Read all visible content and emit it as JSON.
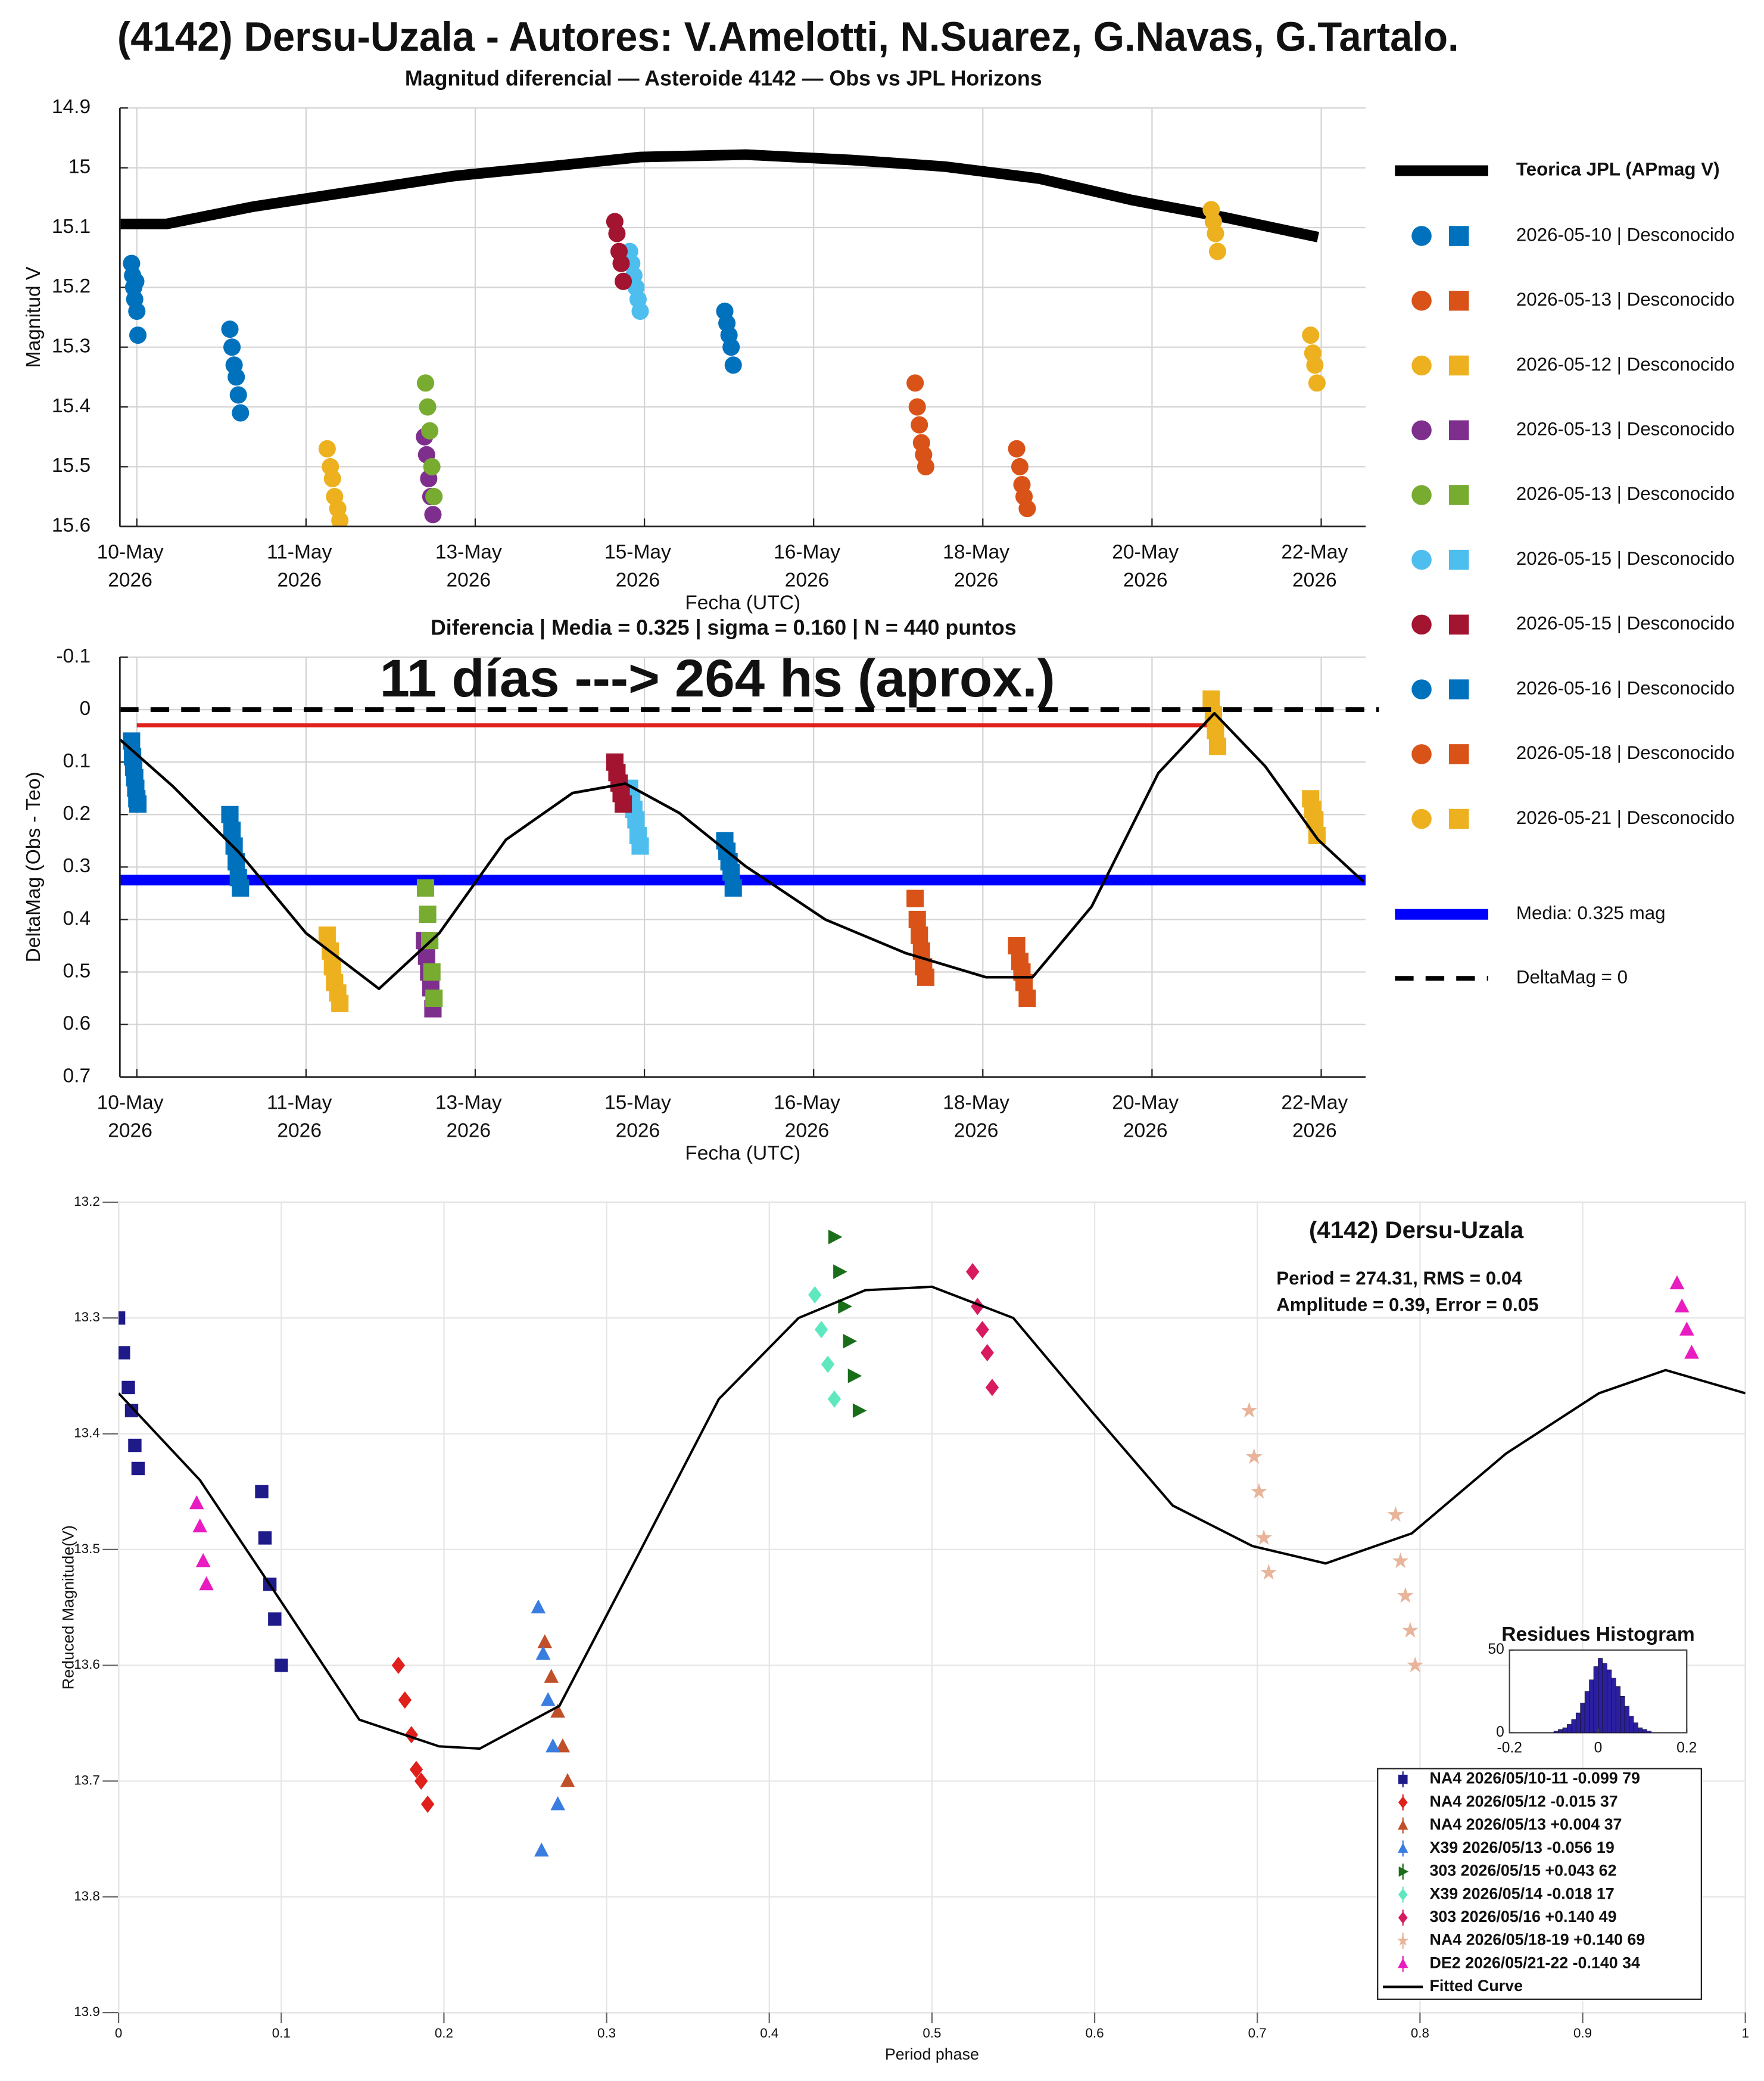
{
  "page_title": "(4142) Dersu-Uzala - Autores: V.Amelotti, N.Suarez, G.Navas, G.Tartalo.",
  "chart_data": [
    {
      "type": "scatter",
      "title": "Magnitud diferencial — Asteroide 4142 — Obs vs JPL Horizons",
      "x_label": "Fecha (UTC)",
      "y_label": "Magnitud V",
      "grid": true,
      "legend": "outside-right",
      "xlim": [
        -0.16,
        11.62
      ],
      "xticks": [
        {
          "value": 0,
          "label": "10-May",
          "sublabel": "2026"
        },
        {
          "value": 1.6,
          "label": "11-May",
          "sublabel": "2026"
        },
        {
          "value": 3.2,
          "label": "13-May",
          "sublabel": "2026"
        },
        {
          "value": 4.8,
          "label": "15-May",
          "sublabel": "2026"
        },
        {
          "value": 6.4,
          "label": "16-May",
          "sublabel": "2026"
        },
        {
          "value": 8.0,
          "label": "18-May",
          "sublabel": "2026"
        },
        {
          "value": 9.6,
          "label": "20-May",
          "sublabel": "2026"
        },
        {
          "value": 11.2,
          "label": "22-May",
          "sublabel": "2026"
        }
      ],
      "ylim": [
        14.9,
        15.6
      ],
      "y_inverted": true,
      "yticks": [
        14.9,
        15,
        15.1,
        15.2,
        15.3,
        15.4,
        15.5,
        15.6
      ],
      "line": {
        "name": "Teorica JPL (APmag V)",
        "color": "#000000",
        "x": [
          -0.16,
          0.28,
          1.1,
          2.1,
          2.99,
          4.0,
          4.76,
          5.76,
          6.76,
          7.64,
          8.53,
          9.41,
          10.29,
          11.17
        ],
        "values": [
          15.094,
          15.094,
          15.065,
          15.038,
          15.014,
          14.996,
          14.982,
          14.978,
          14.987,
          14.998,
          15.018,
          15.054,
          15.083,
          15.116
        ]
      },
      "series": [
        {
          "name": "2026-05-10  |  Desconocido",
          "color": "#0072bd",
          "x": [
            -0.05,
            -0.04,
            -0.03,
            -0.02,
            -0.01,
            0.0,
            0.01,
            0.88,
            0.9,
            0.92,
            0.94,
            0.96,
            0.98
          ],
          "values": [
            15.16,
            15.18,
            15.2,
            15.22,
            15.19,
            15.24,
            15.28,
            15.27,
            15.3,
            15.33,
            15.35,
            15.38,
            15.41
          ]
        },
        {
          "name": "2026-05-13  |  Desconocido",
          "color": "#d95319",
          "x": [
            7.36,
            7.38,
            7.4,
            7.42,
            7.44,
            7.46
          ],
          "values": [
            15.36,
            15.4,
            15.43,
            15.46,
            15.48,
            15.5
          ]
        },
        {
          "name": "2026-05-12  |  Desconocido",
          "color": "#edb120",
          "x": [
            1.8,
            1.83,
            1.85,
            1.87,
            1.9,
            1.92
          ],
          "values": [
            15.47,
            15.5,
            15.52,
            15.55,
            15.57,
            15.59
          ]
        },
        {
          "name": "2026-05-13  |  Desconocido",
          "color": "#7e2f8e",
          "x": [
            2.72,
            2.74,
            2.76,
            2.78,
            2.8
          ],
          "values": [
            15.45,
            15.48,
            15.52,
            15.55,
            15.58
          ]
        },
        {
          "name": "2026-05-13  |  Desconocido",
          "color": "#77ac30",
          "x": [
            2.73,
            2.75,
            2.77,
            2.79,
            2.81
          ],
          "values": [
            15.36,
            15.4,
            15.44,
            15.5,
            15.55
          ]
        },
        {
          "name": "2026-05-15  |  Desconocido",
          "color": "#4dbeee",
          "x": [
            4.66,
            4.68,
            4.7,
            4.72,
            4.74,
            4.76
          ],
          "values": [
            15.14,
            15.16,
            15.18,
            15.2,
            15.22,
            15.24
          ]
        },
        {
          "name": "2026-05-15  |  Desconocido",
          "color": "#a2142f",
          "x": [
            4.52,
            4.54,
            4.56,
            4.58,
            4.6
          ],
          "values": [
            15.09,
            15.11,
            15.14,
            15.16,
            15.19
          ]
        },
        {
          "name": "2026-05-16  |  Desconocido",
          "color": "#0072bd",
          "x": [
            5.56,
            5.58,
            5.6,
            5.62,
            5.64
          ],
          "values": [
            15.24,
            15.26,
            15.28,
            15.3,
            15.33
          ]
        },
        {
          "name": "2026-05-18  |  Desconocido",
          "color": "#d95319",
          "x": [
            8.32,
            8.35,
            8.37,
            8.39,
            8.42
          ],
          "values": [
            15.47,
            15.5,
            15.53,
            15.55,
            15.57
          ]
        },
        {
          "name": "2026-05-21  |  Desconocido",
          "color": "#edb120",
          "x": [
            10.16,
            10.18,
            10.2,
            10.22,
            11.1,
            11.12,
            11.14,
            11.16
          ],
          "values": [
            15.07,
            15.09,
            15.11,
            15.14,
            15.28,
            15.31,
            15.33,
            15.36
          ]
        }
      ]
    },
    {
      "type": "scatter",
      "title": "Diferencia  |  Media = 0.325  |  sigma = 0.160  |  N = 440 puntos",
      "x_label": "Fecha (UTC)",
      "y_label": "DeltaMag (Obs - Teo)",
      "grid": true,
      "annotation": "11 días ---> 264 hs (aprox.)",
      "xlim": [
        -0.16,
        11.62
      ],
      "xticks": [
        {
          "value": 0,
          "label": "10-May",
          "sublabel": "2026"
        },
        {
          "value": 1.6,
          "label": "11-May",
          "sublabel": "2026"
        },
        {
          "value": 3.2,
          "label": "13-May",
          "sublabel": "2026"
        },
        {
          "value": 4.8,
          "label": "15-May",
          "sublabel": "2026"
        },
        {
          "value": 6.4,
          "label": "16-May",
          "sublabel": "2026"
        },
        {
          "value": 8.0,
          "label": "18-May",
          "sublabel": "2026"
        },
        {
          "value": 9.6,
          "label": "20-May",
          "sublabel": "2026"
        },
        {
          "value": 11.2,
          "label": "22-May",
          "sublabel": "2026"
        }
      ],
      "ylim": [
        -0.1,
        0.7
      ],
      "y_inverted": true,
      "yticks": [
        -0.1,
        0,
        0.1,
        0.2,
        0.3,
        0.4,
        0.5,
        0.6,
        0.7
      ],
      "mean_line": {
        "name": "Media: 0.325 mag",
        "value": 0.325,
        "color": "#0000ff"
      },
      "zero_line": {
        "name": "DeltaMag = 0",
        "value": 0,
        "color": "#000000"
      },
      "red_line": {
        "value": 0.03,
        "x": [
          0,
          10.19
        ],
        "color": "#e0201b"
      },
      "fit": {
        "color": "#000000",
        "x": [
          -0.16,
          0.34,
          0.97,
          1.6,
          2.29,
          2.86,
          3.49,
          4.12,
          4.62,
          5.13,
          5.76,
          6.51,
          7.27,
          8.03,
          8.47,
          9.03,
          9.66,
          10.19,
          10.67,
          11.17,
          11.6
        ],
        "values": [
          0.057,
          0.146,
          0.273,
          0.426,
          0.532,
          0.426,
          0.248,
          0.159,
          0.141,
          0.197,
          0.299,
          0.4,
          0.464,
          0.51,
          0.51,
          0.375,
          0.121,
          0.007,
          0.108,
          0.248,
          0.328
        ]
      },
      "series": [
        {
          "color": "#0072bd",
          "x": [
            -0.05,
            -0.04,
            -0.03,
            -0.02,
            -0.01,
            0.0,
            0.01,
            0.88,
            0.9,
            0.92,
            0.94,
            0.96,
            0.98
          ],
          "values": [
            0.06,
            0.09,
            0.11,
            0.13,
            0.15,
            0.17,
            0.18,
            0.2,
            0.23,
            0.26,
            0.29,
            0.32,
            0.34
          ]
        },
        {
          "color": "#d95319",
          "x": [
            7.36,
            7.38,
            7.4,
            7.42,
            7.44,
            7.46
          ],
          "values": [
            0.36,
            0.4,
            0.43,
            0.46,
            0.49,
            0.51
          ]
        },
        {
          "color": "#edb120",
          "x": [
            1.8,
            1.83,
            1.85,
            1.87,
            1.9,
            1.92
          ],
          "values": [
            0.43,
            0.46,
            0.49,
            0.52,
            0.54,
            0.56
          ]
        },
        {
          "color": "#7e2f8e",
          "x": [
            2.72,
            2.74,
            2.76,
            2.78,
            2.8
          ],
          "values": [
            0.44,
            0.47,
            0.5,
            0.53,
            0.57
          ]
        },
        {
          "color": "#77ac30",
          "x": [
            2.73,
            2.75,
            2.77,
            2.79,
            2.81
          ],
          "values": [
            0.34,
            0.39,
            0.44,
            0.5,
            0.55
          ]
        },
        {
          "color": "#4dbeee",
          "x": [
            4.66,
            4.68,
            4.7,
            4.72,
            4.74,
            4.76
          ],
          "values": [
            0.15,
            0.17,
            0.19,
            0.21,
            0.24,
            0.26
          ]
        },
        {
          "color": "#a2142f",
          "x": [
            4.52,
            4.54,
            4.56,
            4.58,
            4.6
          ],
          "values": [
            0.1,
            0.12,
            0.14,
            0.16,
            0.18
          ]
        },
        {
          "color": "#0072bd",
          "x": [
            5.56,
            5.58,
            5.6,
            5.62,
            5.64
          ],
          "values": [
            0.25,
            0.27,
            0.29,
            0.31,
            0.34
          ]
        },
        {
          "color": "#d95319",
          "x": [
            8.32,
            8.35,
            8.37,
            8.39,
            8.42
          ],
          "values": [
            0.45,
            0.48,
            0.5,
            0.52,
            0.55
          ]
        },
        {
          "color": "#edb120",
          "x": [
            10.16,
            10.18,
            10.2,
            10.22,
            11.1,
            11.12,
            11.14,
            11.16
          ],
          "values": [
            -0.02,
            0.01,
            0.04,
            0.07,
            0.17,
            0.19,
            0.21,
            0.24
          ]
        }
      ]
    },
    {
      "type": "scatter",
      "title": "(4142) Dersu-Uzala",
      "annotations": [
        "Period =  274.31, RMS = 0.04",
        "Amplitude = 0.39, Error = 0.05"
      ],
      "x_label": "Period phase",
      "y_label": "Reduced Magnitude(V)",
      "grid": true,
      "legend": "south-east",
      "xlim": [
        0,
        1
      ],
      "xticks": [
        0,
        0.1,
        0.2,
        0.3,
        0.4,
        0.5,
        0.6,
        0.7,
        0.8,
        0.9,
        1
      ],
      "ylim": [
        13.2,
        13.9
      ],
      "y_inverted": true,
      "yticks": [
        13.2,
        13.3,
        13.4,
        13.5,
        13.6,
        13.7,
        13.8,
        13.9
      ],
      "fit": {
        "name": "Fitted Curve",
        "color": "#000000",
        "x": [
          0,
          0.05,
          0.099,
          0.148,
          0.197,
          0.222,
          0.271,
          0.32,
          0.369,
          0.418,
          0.459,
          0.5,
          0.55,
          0.599,
          0.648,
          0.697,
          0.742,
          0.795,
          0.853,
          0.91,
          0.951,
          1.0
        ],
        "values": [
          13.365,
          13.44,
          13.543,
          13.647,
          13.67,
          13.672,
          13.635,
          13.503,
          13.37,
          13.3,
          13.276,
          13.273,
          13.3,
          13.382,
          13.462,
          13.497,
          13.512,
          13.486,
          13.417,
          13.365,
          13.345,
          13.365
        ]
      },
      "series": [
        {
          "name": "NA4 2026/05/10-11   -0.099   79",
          "color": "#1f1a8a",
          "marker": "square",
          "x": [
            0.0,
            0.003,
            0.006,
            0.008,
            0.01,
            0.012,
            0.088,
            0.09,
            0.093,
            0.096,
            0.1
          ],
          "values": [
            13.3,
            13.33,
            13.36,
            13.38,
            13.41,
            13.43,
            13.45,
            13.49,
            13.53,
            13.56,
            13.6
          ]
        },
        {
          "name": "NA4 2026/05/12   -0.015   37",
          "color": "#e0201b",
          "marker": "diamond",
          "x": [
            0.172,
            0.176,
            0.18,
            0.183,
            0.186,
            0.19
          ],
          "values": [
            13.6,
            13.63,
            13.66,
            13.69,
            13.7,
            13.72
          ]
        },
        {
          "name": "NA4 2026/05/13   +0.004   37",
          "color": "#c0502a",
          "marker": "triangle",
          "x": [
            0.262,
            0.266,
            0.27,
            0.273,
            0.276
          ],
          "values": [
            13.58,
            13.61,
            13.64,
            13.67,
            13.7
          ]
        },
        {
          "name": "X39 2026/05/13   -0.056   19",
          "color": "#3a7de0",
          "marker": "triangle",
          "x": [
            0.258,
            0.261,
            0.264,
            0.267,
            0.27,
            0.26
          ],
          "values": [
            13.55,
            13.59,
            13.63,
            13.67,
            13.72,
            13.76
          ]
        },
        {
          "name": "303 2026/05/15   +0.043   62",
          "color": "#1a6e1a",
          "marker": "triangle-right",
          "x": [
            0.44,
            0.443,
            0.446,
            0.449,
            0.452,
            0.455
          ],
          "values": [
            13.23,
            13.26,
            13.29,
            13.32,
            13.35,
            13.38
          ]
        },
        {
          "name": "X39 2026/05/14   -0.018   17",
          "color": "#5fe8c0",
          "marker": "diamond",
          "x": [
            0.428,
            0.432,
            0.436,
            0.44
          ],
          "values": [
            13.28,
            13.31,
            13.34,
            13.37
          ]
        },
        {
          "name": "303 2026/05/16   +0.140   49",
          "color": "#d81b60",
          "marker": "diamond",
          "x": [
            0.525,
            0.528,
            0.531,
            0.534,
            0.537
          ],
          "values": [
            13.26,
            13.29,
            13.31,
            13.33,
            13.36
          ]
        },
        {
          "name": "NA4 2026/05/18-19   +0.140   69",
          "color": "#e8b49a",
          "marker": "star",
          "x": [
            0.695,
            0.698,
            0.701,
            0.704,
            0.707,
            0.785,
            0.788,
            0.791,
            0.794,
            0.797
          ],
          "values": [
            13.38,
            13.42,
            13.45,
            13.49,
            13.52,
            13.47,
            13.51,
            13.54,
            13.57,
            13.6
          ]
        },
        {
          "name": "DE2 2026/05/21-22   -0.140   34",
          "color": "#e81cc0",
          "marker": "triangle",
          "x": [
            0.048,
            0.05,
            0.052,
            0.054,
            0.958,
            0.961,
            0.964,
            0.967
          ],
          "values": [
            13.46,
            13.48,
            13.51,
            13.53,
            13.27,
            13.29,
            13.31,
            13.33
          ]
        }
      ],
      "histogram": {
        "title": "Residues Histogram",
        "color": "#2b1fa0",
        "bins": [
          -0.1,
          -0.09,
          -0.08,
          -0.07,
          -0.06,
          -0.05,
          -0.04,
          -0.03,
          -0.02,
          -0.01,
          0,
          0.01,
          0.02,
          0.03,
          0.04,
          0.05,
          0.06,
          0.07,
          0.08,
          0.09,
          0.1,
          0.11,
          0.12
        ],
        "counts": [
          1,
          2,
          3,
          5,
          8,
          12,
          18,
          25,
          32,
          40,
          45,
          42,
          38,
          33,
          28,
          22,
          16,
          10,
          6,
          3,
          2,
          1
        ],
        "xlim": [
          -0.2,
          0.2
        ],
        "xticks": [
          -0.2,
          0,
          0.2
        ],
        "ylim": [
          0,
          50
        ],
        "yticks": [
          0,
          50
        ]
      }
    }
  ]
}
